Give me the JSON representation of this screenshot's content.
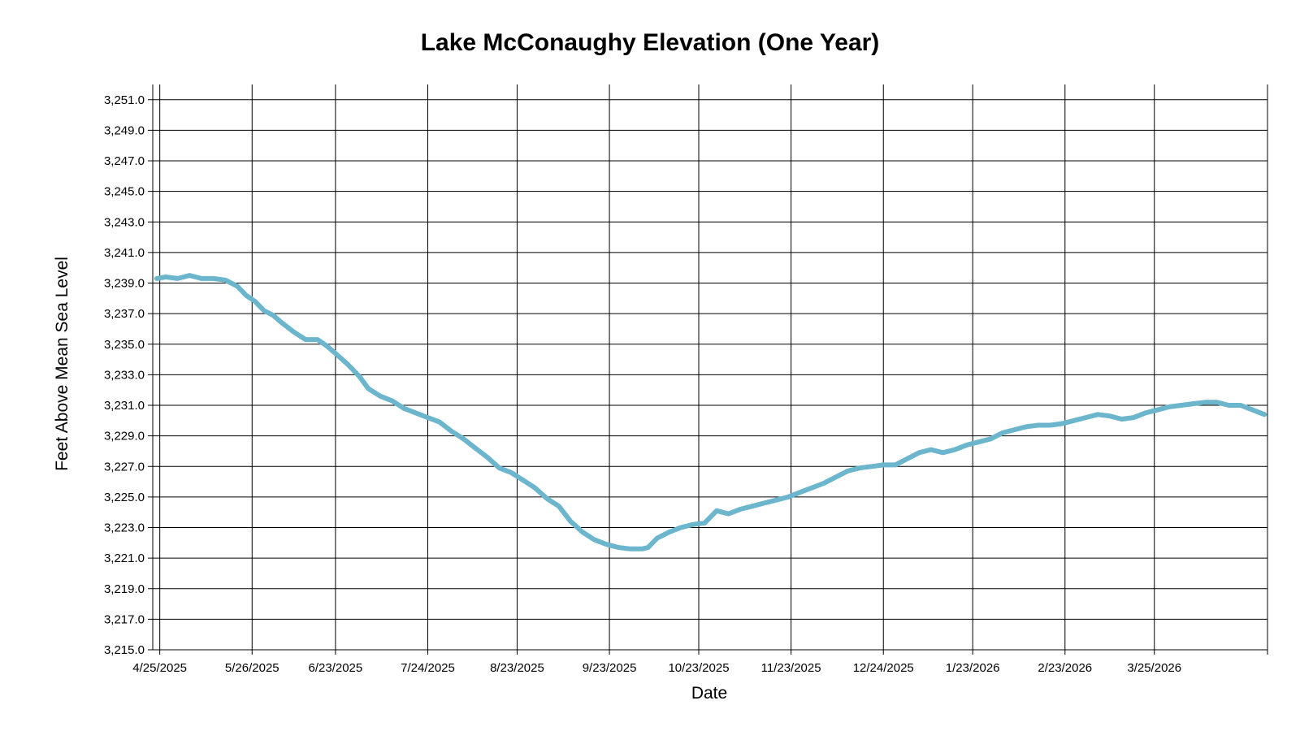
{
  "chart_data": {
    "type": "line",
    "title": "Lake McConaughy Elevation (One Year)",
    "xlabel": "Date",
    "ylabel": "Feet Above Mean Sea Level",
    "x_tick_labels": [
      "4/25/2025",
      "5/26/2025",
      "6/23/2025",
      "7/24/2025",
      "8/23/2025",
      "9/23/2025",
      "10/23/2025",
      "11/23/2025",
      "12/24/2025",
      "1/23/2026",
      "2/23/2026",
      "3/25/2026"
    ],
    "y_tick_labels": [
      "3,215.0",
      "3,217.0",
      "3,219.0",
      "3,221.0",
      "3,223.0",
      "3,225.0",
      "3,227.0",
      "3,229.0",
      "3,231.0",
      "3,233.0",
      "3,235.0",
      "3,237.0",
      "3,239.0",
      "3,241.0",
      "3,243.0",
      "3,245.0",
      "3,247.0",
      "3,249.0",
      "3,251.0"
    ],
    "ylim": [
      3215.0,
      3252.0
    ],
    "xlim": [
      "2025-04-24",
      "2026-05-02"
    ],
    "grid": true,
    "series_color": "#6bb5cd",
    "series": [
      {
        "x": [
          "2025-04-24",
          "2025-04-27",
          "2025-05-01",
          "2025-05-05",
          "2025-05-09",
          "2025-05-13",
          "2025-05-17",
          "2025-05-21",
          "2025-05-24",
          "2025-05-27",
          "2025-05-30",
          "2025-06-02",
          "2025-06-05",
          "2025-06-09",
          "2025-06-13",
          "2025-06-17",
          "2025-06-20",
          "2025-06-23",
          "2025-06-27",
          "2025-07-01",
          "2025-07-04",
          "2025-07-08",
          "2025-07-12",
          "2025-07-16",
          "2025-07-20",
          "2025-07-24",
          "2025-07-28",
          "2025-08-01",
          "2025-08-05",
          "2025-08-09",
          "2025-08-13",
          "2025-08-17",
          "2025-08-21",
          "2025-08-25",
          "2025-08-29",
          "2025-09-02",
          "2025-09-06",
          "2025-09-10",
          "2025-09-14",
          "2025-09-18",
          "2025-09-22",
          "2025-09-26",
          "2025-09-30",
          "2025-10-04",
          "2025-10-06",
          "2025-10-07",
          "2025-10-09",
          "2025-10-13",
          "2025-10-17",
          "2025-10-21",
          "2025-10-25",
          "2025-10-29",
          "2025-11-02",
          "2025-11-06",
          "2025-11-10",
          "2025-11-14",
          "2025-11-18",
          "2025-11-22",
          "2025-11-26",
          "2025-11-30",
          "2025-12-04",
          "2025-12-08",
          "2025-12-12",
          "2025-12-16",
          "2025-12-20",
          "2025-12-24",
          "2025-12-28",
          "2026-01-01",
          "2026-01-05",
          "2026-01-09",
          "2026-01-13",
          "2026-01-17",
          "2026-01-21",
          "2026-01-25",
          "2026-01-29",
          "2026-02-02",
          "2026-02-06",
          "2026-02-10",
          "2026-02-14",
          "2026-02-18",
          "2026-02-22",
          "2026-02-26",
          "2026-03-02",
          "2026-03-06",
          "2026-03-10",
          "2026-03-14",
          "2026-03-18",
          "2026-03-22",
          "2026-03-26",
          "2026-03-30",
          "2026-04-03",
          "2026-04-07",
          "2026-04-11",
          "2026-04-15",
          "2026-04-19",
          "2026-04-23",
          "2026-04-27",
          "2026-05-01"
        ],
        "values": [
          3239.3,
          3239.4,
          3239.3,
          3239.5,
          3239.3,
          3239.3,
          3239.2,
          3238.8,
          3238.2,
          3237.8,
          3237.2,
          3236.9,
          3236.4,
          3235.8,
          3235.3,
          3235.3,
          3234.9,
          3234.4,
          3233.7,
          3232.9,
          3232.1,
          3231.6,
          3231.3,
          3230.8,
          3230.5,
          3230.2,
          3229.9,
          3229.3,
          3228.8,
          3228.2,
          3227.6,
          3226.9,
          3226.6,
          3226.1,
          3225.6,
          3224.9,
          3224.4,
          3223.4,
          3222.7,
          3222.2,
          3221.9,
          3221.7,
          3221.6,
          3221.6,
          3221.7,
          3221.9,
          3222.3,
          3222.7,
          3223.0,
          3223.2,
          3223.3,
          3224.1,
          3223.9,
          3224.2,
          3224.4,
          3224.6,
          3224.8,
          3225.0,
          3225.3,
          3225.6,
          3225.9,
          3226.3,
          3226.7,
          3226.9,
          3227.0,
          3227.1,
          3227.1,
          3227.5,
          3227.9,
          3228.1,
          3227.9,
          3228.1,
          3228.4,
          3228.6,
          3228.8,
          3229.2,
          3229.4,
          3229.6,
          3229.7,
          3229.7,
          3229.8,
          3230.0,
          3230.2,
          3230.4,
          3230.3,
          3230.1,
          3230.2,
          3230.5,
          3230.7,
          3230.9,
          3231.0,
          3231.1,
          3231.2,
          3231.2,
          3231.0,
          3231.0,
          3230.7,
          3230.4
        ]
      }
    ]
  }
}
